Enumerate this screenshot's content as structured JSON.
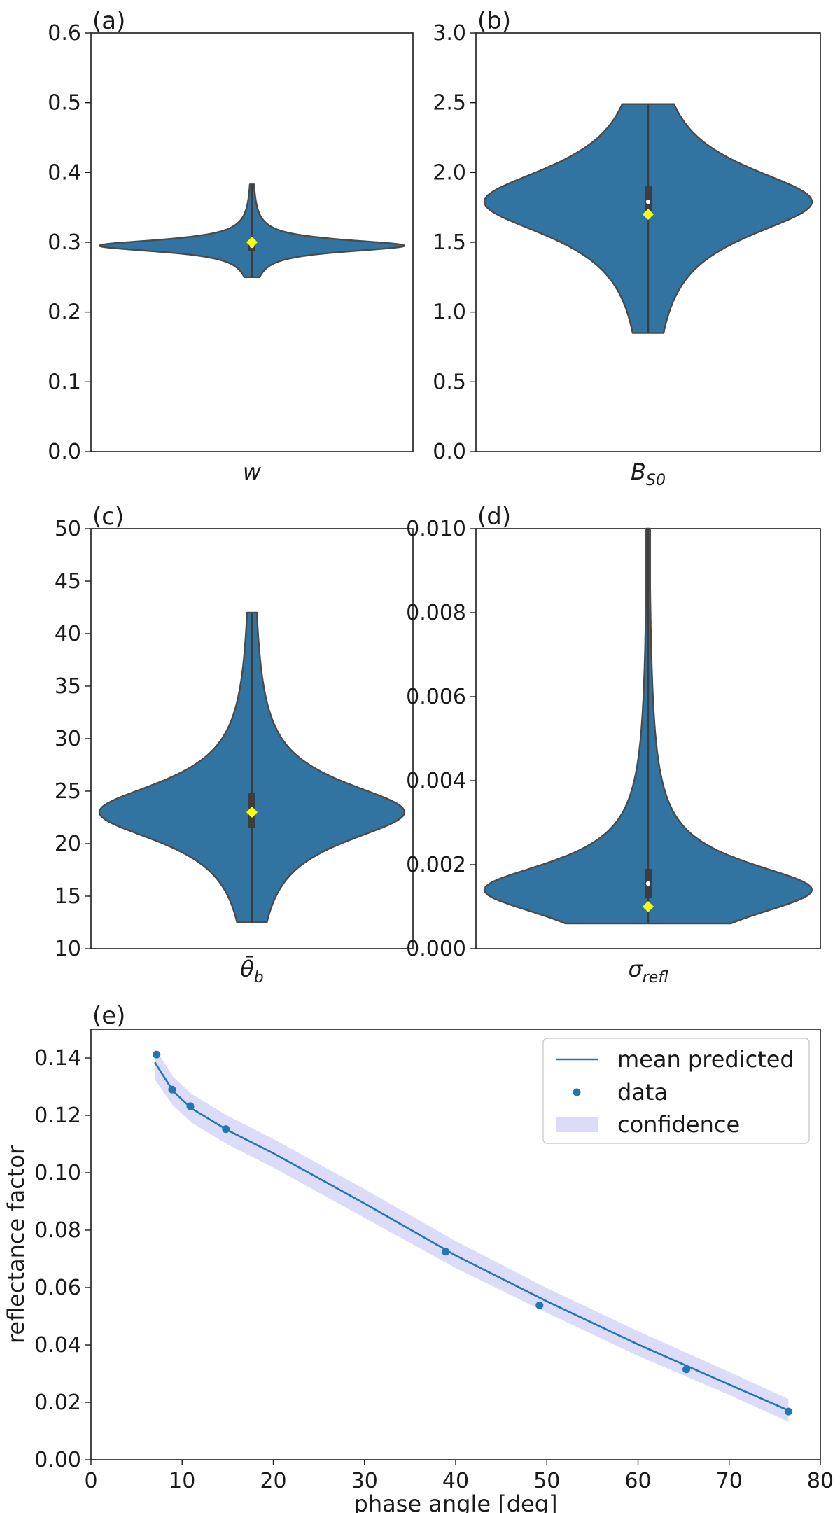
{
  "chart_data": [
    {
      "type": "violin",
      "panel_label": "(a)",
      "xlabel": "w",
      "xlabel_sub": "",
      "ylim": [
        0.0,
        0.6
      ],
      "yticks": [
        0.0,
        0.1,
        0.2,
        0.3,
        0.4,
        0.5,
        0.6
      ],
      "tick_labels": [
        "0.0",
        "0.1",
        "0.2",
        "0.3",
        "0.4",
        "0.5",
        "0.6"
      ],
      "distribution": {
        "min": 0.25,
        "max": 0.383,
        "mode": 0.295,
        "mean": 0.297,
        "median": 0.295,
        "q1": 0.288,
        "q3": 0.305,
        "true_value": 0.3
      }
    },
    {
      "type": "violin",
      "panel_label": "(b)",
      "xlabel": "B",
      "xlabel_sub": "S0",
      "ylim": [
        0.0,
        3.0
      ],
      "yticks": [
        0.0,
        0.5,
        1.0,
        1.5,
        2.0,
        2.5,
        3.0
      ],
      "tick_labels": [
        "0.0",
        "0.5",
        "1.0",
        "1.5",
        "2.0",
        "2.5",
        "3.0"
      ],
      "distribution": {
        "min": 0.85,
        "max": 2.49,
        "mode": 1.79,
        "mean": 1.78,
        "median": 1.79,
        "q1": 1.68,
        "q3": 1.9,
        "true_value": 1.7
      }
    },
    {
      "type": "violin",
      "panel_label": "(c)",
      "xlabel": "θ̄",
      "xlabel_sub": "b",
      "ylim": [
        10,
        50
      ],
      "yticks": [
        10,
        15,
        20,
        25,
        30,
        35,
        40,
        45,
        50
      ],
      "tick_labels": [
        "10",
        "15",
        "20",
        "25",
        "30",
        "35",
        "40",
        "45",
        "50"
      ],
      "distribution": {
        "min": 12.5,
        "max": 42.0,
        "mode": 23.0,
        "mean": 23.2,
        "median": 23.0,
        "q1": 21.5,
        "q3": 24.8,
        "true_value": 23.0
      }
    },
    {
      "type": "violin",
      "panel_label": "(d)",
      "xlabel": "σ",
      "xlabel_sub": "refl",
      "ylim": [
        0.0,
        0.01
      ],
      "yticks": [
        0.0,
        0.002,
        0.004,
        0.006,
        0.008,
        0.01
      ],
      "tick_labels": [
        "0.000",
        "0.002",
        "0.004",
        "0.006",
        "0.008",
        "0.010"
      ],
      "distribution": {
        "min": 0.0006,
        "max": 0.01,
        "mode": 0.0014,
        "mean": 0.0017,
        "median": 0.00155,
        "q1": 0.0012,
        "q3": 0.0019,
        "true_value": 0.001
      }
    },
    {
      "type": "line+scatter",
      "panel_label": "(e)",
      "xlabel": "phase angle [deg]",
      "ylabel": "reflectance factor",
      "xlim": [
        0,
        80
      ],
      "ylim": [
        0.0,
        0.15
      ],
      "xticks": [
        0,
        10,
        20,
        30,
        40,
        50,
        60,
        70,
        80
      ],
      "xtick_labels": [
        "0",
        "10",
        "20",
        "30",
        "40",
        "50",
        "60",
        "70",
        "80"
      ],
      "yticks": [
        0.0,
        0.02,
        0.04,
        0.06,
        0.08,
        0.1,
        0.12,
        0.14
      ],
      "ytick_labels": [
        "0.00",
        "0.02",
        "0.04",
        "0.06",
        "0.08",
        "0.10",
        "0.12",
        "0.14"
      ],
      "legend": {
        "placement": "top-right",
        "entries": [
          "mean predicted",
          "data",
          "confidence"
        ]
      },
      "series": [
        {
          "name": "mean predicted",
          "kind": "line",
          "x": [
            7,
            9,
            11,
            15,
            20,
            30,
            40,
            50,
            60,
            70,
            76.5
          ],
          "y": [
            0.1385,
            0.1285,
            0.1225,
            0.1148,
            0.1068,
            0.0893,
            0.0712,
            0.0552,
            0.0402,
            0.0262,
            0.0172
          ]
        },
        {
          "name": "data",
          "kind": "scatter",
          "x": [
            7.2,
            8.9,
            10.9,
            14.8,
            38.9,
            49.2,
            65.3,
            76.5
          ],
          "y": [
            0.1412,
            0.129,
            0.1232,
            0.1152,
            0.0725,
            0.0538,
            0.0315,
            0.0168
          ]
        },
        {
          "name": "confidence",
          "kind": "band",
          "x": [
            7,
            9,
            11,
            15,
            20,
            30,
            40,
            50,
            60,
            70,
            76.5
          ],
          "lower": [
            0.1325,
            0.1235,
            0.1175,
            0.1098,
            0.1018,
            0.0843,
            0.0668,
            0.0512,
            0.0362,
            0.0226,
            0.0132
          ],
          "upper": [
            0.1435,
            0.1335,
            0.1275,
            0.1198,
            0.1118,
            0.0943,
            0.0762,
            0.0598,
            0.0448,
            0.0306,
            0.0212
          ]
        }
      ]
    }
  ],
  "colors": {
    "violin_fill": "#3274a1",
    "violin_edge": "#4a4a4a",
    "box": "#3d3d3d",
    "median": "#ffffff",
    "true_marker": "#ffff00",
    "line": "#1f77b4",
    "band": "#dcdcf8",
    "axis": "#1a1a1a"
  }
}
